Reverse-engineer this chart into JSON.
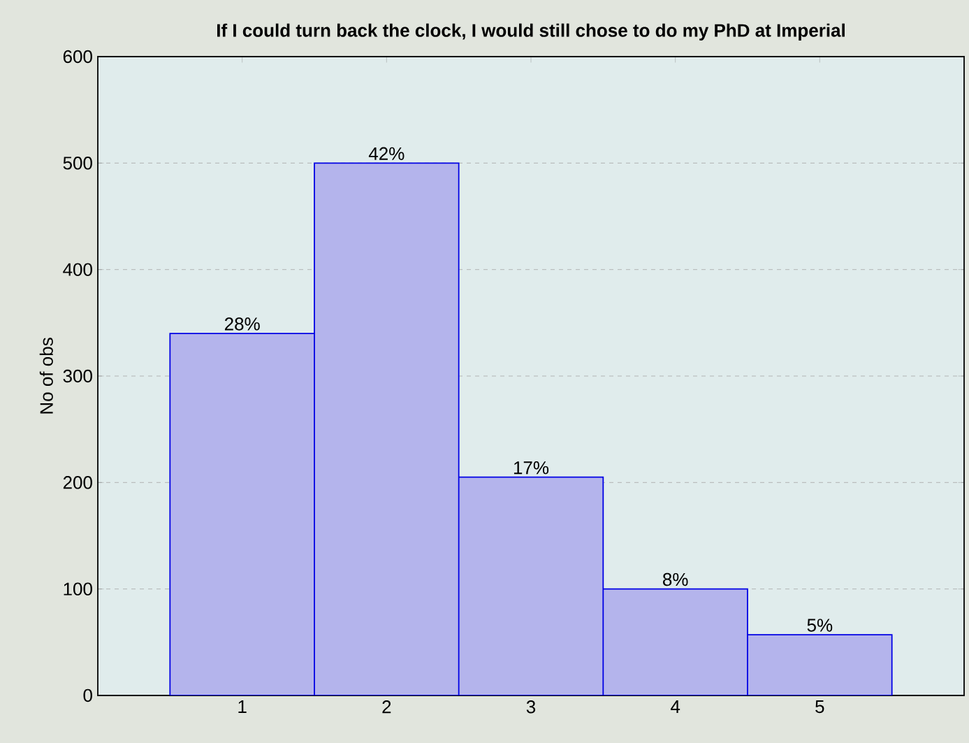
{
  "chart_data": {
    "type": "histogram",
    "title": "If I could turn back the clock, I would still chose to do my PhD at Imperial",
    "ylabel": "No of obs",
    "bins": [
      0.5,
      1.5,
      2.5,
      3.5,
      4.5,
      5.5
    ],
    "values": [
      340,
      500,
      205,
      100,
      57
    ],
    "color": "#b4b4ec",
    "annotations": [
      {
        "text": "28%",
        "x": 1,
        "y": 340
      },
      {
        "text": "42%",
        "x": 2,
        "y": 500
      },
      {
        "text": "17%",
        "x": 3,
        "y": 205
      },
      {
        "text": "8%",
        "x": 4,
        "y": 100
      },
      {
        "text": "5%",
        "x": 5,
        "y": 57
      }
    ],
    "xlim": [
      0,
      6
    ],
    "xticks": [
      1,
      2,
      3,
      4,
      5
    ],
    "ylim": [
      0,
      600
    ],
    "yticks": [
      0,
      100,
      200,
      300,
      400,
      500,
      600
    ],
    "grid": "y"
  }
}
